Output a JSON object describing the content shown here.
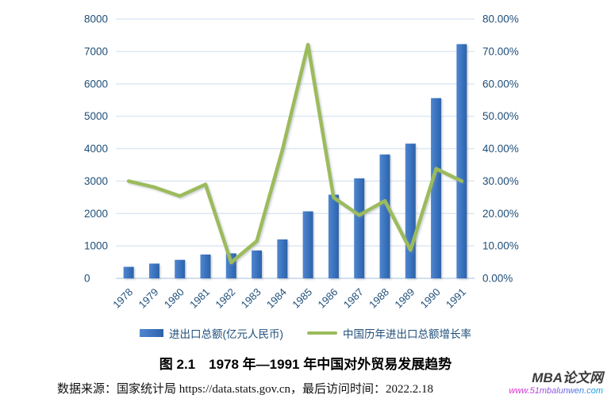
{
  "figure": {
    "caption": "图 2.1　1978 年—1991 年中国对外贸易发展趋势",
    "source_line": "数据来源：国家统计局 https://data.stats.gov.cn，最后访问时间：2022.2.18"
  },
  "watermark": {
    "brand": "MBA论文网",
    "url": "www.51mbalunwen.com"
  },
  "legend": [
    {
      "label": "进出口总额(亿元人民币)",
      "swatch": "bar-swatch",
      "color": "#3A72BE"
    },
    {
      "label": "中国历年进出口总额增长率",
      "swatch": "line-swatch",
      "color": "#9CBB5B"
    }
  ],
  "colors": {
    "bar_light": "#4f86cd",
    "bar_mid": "#3a72be",
    "bar_dark": "#2d62a8",
    "line_green": "#9CBB5B",
    "axis_text": "#1F4E79",
    "gridline": "#dde7f3",
    "baseline": "#c3d4ea"
  },
  "chart_data": {
    "type": "bar",
    "subtype": "bar+line combo, dual axis",
    "title": "",
    "categories": [
      "1978",
      "1979",
      "1980",
      "1981",
      "1982",
      "1983",
      "1984",
      "1985",
      "1986",
      "1987",
      "1988",
      "1989",
      "1990",
      "1991"
    ],
    "series": [
      {
        "name": "进出口总额(亿元人民币)",
        "type": "bar",
        "axis": "left",
        "values": [
          355.0,
          454.6,
          570.0,
          735.3,
          771.3,
          860.1,
          1201.0,
          2066.7,
          2580.4,
          3084.2,
          3821.8,
          4155.9,
          5560.1,
          7225.8
        ]
      },
      {
        "name": "中国历年进出口总额增长率",
        "type": "line",
        "axis": "right",
        "values_percent": [
          30.0,
          28.1,
          25.4,
          29.0,
          4.9,
          11.5,
          39.6,
          72.1,
          24.9,
          19.5,
          23.9,
          8.7,
          33.8,
          30.0
        ]
      }
    ],
    "left_axis": {
      "min": 0,
      "max": 8000,
      "step": 1000,
      "tick_labels": [
        "0",
        "1000",
        "2000",
        "3000",
        "4000",
        "5000",
        "6000",
        "7000",
        "8000"
      ]
    },
    "right_axis": {
      "min": 0,
      "max": 80,
      "step": 10,
      "tick_labels": [
        "0.00%",
        "10.00%",
        "20.00%",
        "30.00%",
        "40.00%",
        "50.00%",
        "60.00%",
        "70.00%",
        "80.00%"
      ]
    },
    "grid": true,
    "legend_position": "bottom"
  }
}
